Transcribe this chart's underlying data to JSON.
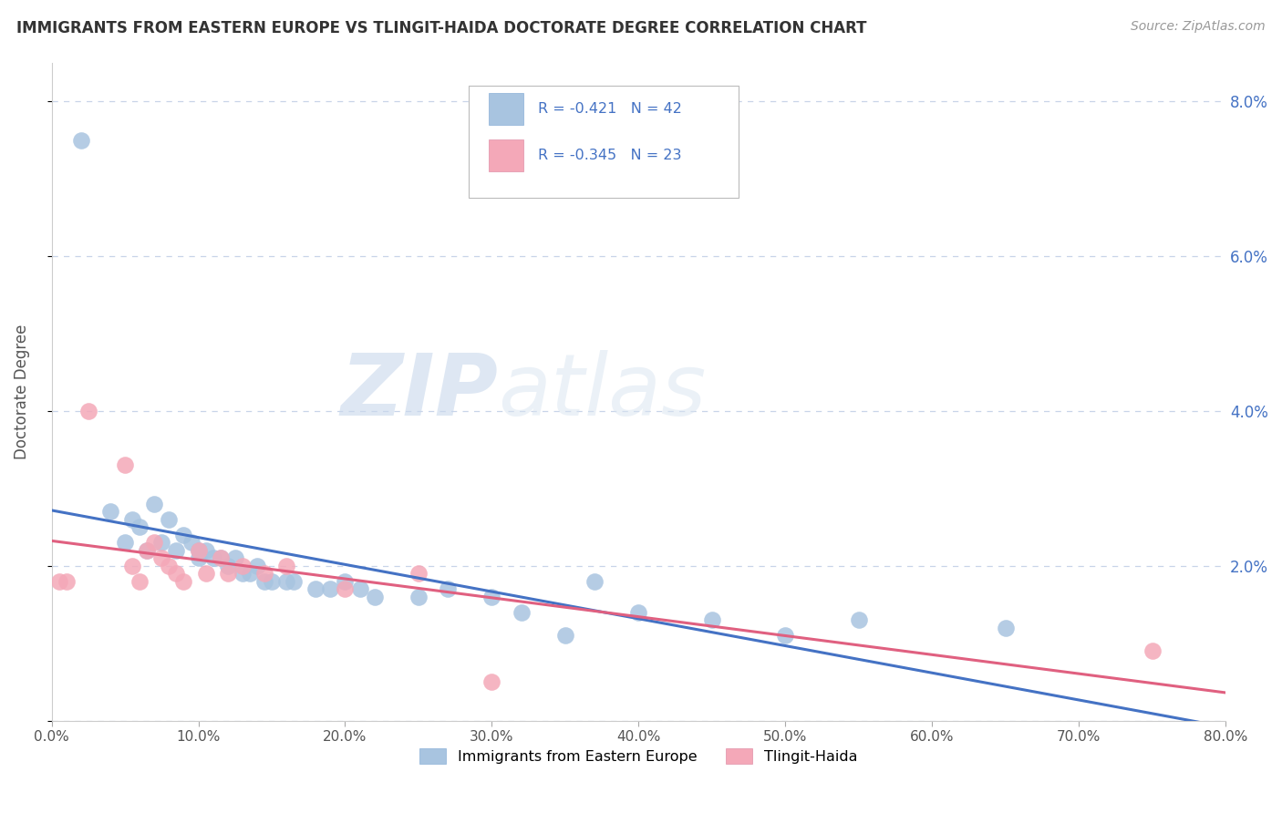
{
  "title": "IMMIGRANTS FROM EASTERN EUROPE VS TLINGIT-HAIDA DOCTORATE DEGREE CORRELATION CHART",
  "source": "Source: ZipAtlas.com",
  "ylabel": "Doctorate Degree",
  "xlim": [
    0,
    0.8
  ],
  "ylim": [
    0,
    0.085
  ],
  "xticks": [
    0.0,
    0.1,
    0.2,
    0.3,
    0.4,
    0.5,
    0.6,
    0.7,
    0.8
  ],
  "yticks_right": [
    0.0,
    0.02,
    0.04,
    0.06,
    0.08
  ],
  "series1_color": "#a8c4e0",
  "series2_color": "#f4a8b8",
  "line1_color": "#4472c4",
  "line2_color": "#e06080",
  "background_color": "#ffffff",
  "grid_color": "#c8d4e8",
  "blue_scatter_x": [
    0.02,
    0.04,
    0.05,
    0.055,
    0.06,
    0.065,
    0.07,
    0.075,
    0.08,
    0.085,
    0.09,
    0.095,
    0.1,
    0.1,
    0.105,
    0.11,
    0.115,
    0.12,
    0.125,
    0.13,
    0.135,
    0.14,
    0.145,
    0.15,
    0.16,
    0.165,
    0.18,
    0.19,
    0.2,
    0.21,
    0.22,
    0.25,
    0.27,
    0.3,
    0.32,
    0.35,
    0.37,
    0.4,
    0.45,
    0.5,
    0.55,
    0.65
  ],
  "blue_scatter_y": [
    0.075,
    0.027,
    0.023,
    0.026,
    0.025,
    0.022,
    0.028,
    0.023,
    0.026,
    0.022,
    0.024,
    0.023,
    0.022,
    0.021,
    0.022,
    0.021,
    0.021,
    0.02,
    0.021,
    0.019,
    0.019,
    0.02,
    0.018,
    0.018,
    0.018,
    0.018,
    0.017,
    0.017,
    0.018,
    0.017,
    0.016,
    0.016,
    0.017,
    0.016,
    0.014,
    0.011,
    0.018,
    0.014,
    0.013,
    0.011,
    0.013,
    0.012
  ],
  "pink_scatter_x": [
    0.005,
    0.01,
    0.025,
    0.05,
    0.055,
    0.06,
    0.065,
    0.07,
    0.075,
    0.08,
    0.085,
    0.09,
    0.1,
    0.105,
    0.115,
    0.12,
    0.13,
    0.145,
    0.16,
    0.2,
    0.25,
    0.3,
    0.75
  ],
  "pink_scatter_y": [
    0.018,
    0.018,
    0.04,
    0.033,
    0.02,
    0.018,
    0.022,
    0.023,
    0.021,
    0.02,
    0.019,
    0.018,
    0.022,
    0.019,
    0.021,
    0.019,
    0.02,
    0.019,
    0.02,
    0.017,
    0.019,
    0.005,
    0.009
  ],
  "legend_label1": "R = -0.421   N = 42",
  "legend_label2": "R = -0.345   N = 23",
  "bottom_legend1": "Immigrants from Eastern Europe",
  "bottom_legend2": "Tlingit-Haida"
}
